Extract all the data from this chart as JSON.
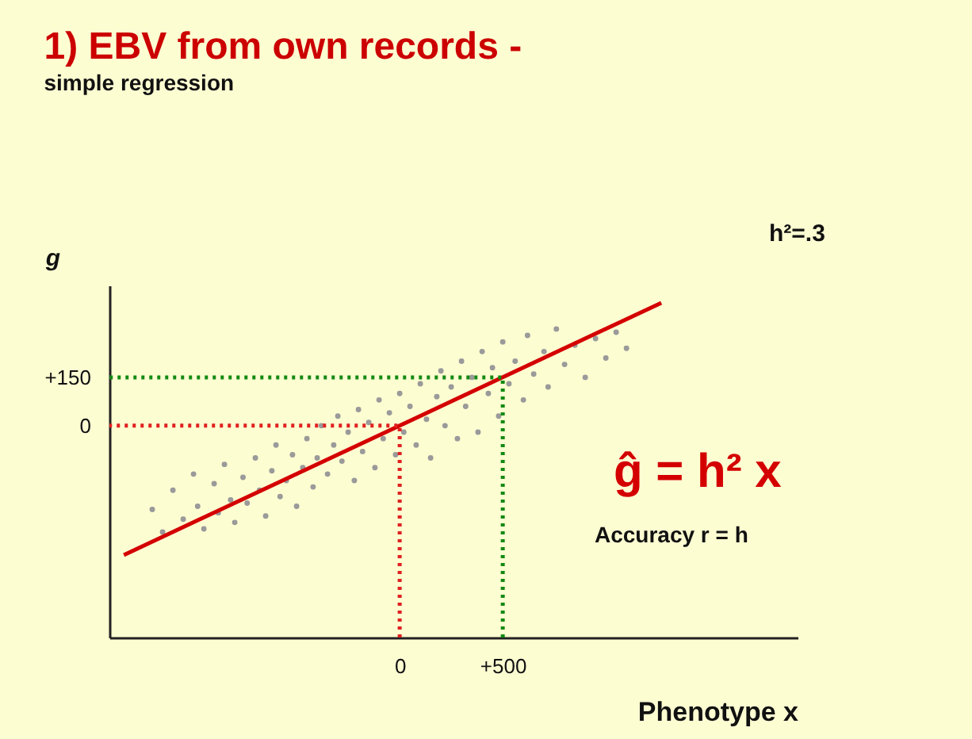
{
  "chart_data": {
    "type": "scatter",
    "title": "1) EBV from own records -",
    "subtitle": "simple regression",
    "xlabel": "Phenotype x",
    "ylabel": "g",
    "annotations": [
      "h²=.3",
      "ĝ = h² x",
      "Accuracy    r = h"
    ],
    "xlim": [
      -1408,
      1930
    ],
    "ylim": [
      -657,
      435
    ],
    "xticks": [
      0,
      {
        "value": 500,
        "label": "+500"
      }
    ],
    "yticks": [
      0,
      {
        "value": 150,
        "label": "+150"
      }
    ],
    "grid": false,
    "series": [
      {
        "marker": "circle",
        "color": "#9a9a9a",
        "x": [
          -1200,
          -1150,
          -1100,
          -1050,
          -1000,
          -980,
          -950,
          -900,
          -880,
          -850,
          -820,
          -800,
          -760,
          -740,
          -700,
          -680,
          -650,
          -620,
          -600,
          -580,
          -550,
          -520,
          -500,
          -470,
          -450,
          -420,
          -400,
          -380,
          -350,
          -320,
          -300,
          -280,
          -250,
          -220,
          -200,
          -180,
          -150,
          -120,
          -100,
          -80,
          -50,
          -20,
          0,
          20,
          50,
          80,
          100,
          130,
          150,
          180,
          200,
          220,
          250,
          280,
          300,
          320,
          350,
          380,
          400,
          430,
          450,
          480,
          500,
          530,
          560,
          600,
          620,
          650,
          700,
          720,
          760,
          800,
          850,
          900,
          950,
          1000,
          1050,
          1100
        ],
        "values": [
          -260,
          -330,
          -200,
          -290,
          -150,
          -250,
          -320,
          -180,
          -270,
          -120,
          -230,
          -300,
          -160,
          -240,
          -100,
          -200,
          -280,
          -140,
          -60,
          -220,
          -170,
          -90,
          -250,
          -130,
          -40,
          -190,
          -100,
          0,
          -150,
          -60,
          30,
          -110,
          -20,
          -170,
          50,
          -80,
          10,
          -130,
          80,
          -40,
          40,
          -90,
          100,
          -20,
          60,
          -60,
          130,
          20,
          -100,
          90,
          170,
          0,
          120,
          -40,
          200,
          60,
          150,
          -20,
          230,
          100,
          180,
          30,
          260,
          130,
          200,
          80,
          280,
          160,
          230,
          120,
          300,
          190,
          250,
          150,
          270,
          210,
          290,
          240
        ]
      },
      {
        "type": "line",
        "marker": "none",
        "line_style": "solid",
        "color": "#d40000",
        "x": [
          -1338,
          1269
        ],
        "values": [
          -401,
          381
        ]
      },
      {
        "type": "line",
        "marker": "none",
        "line_style": "dotted",
        "color": "#e02020",
        "x": [
          0,
          0,
          -1408
        ],
        "values": [
          -657,
          0,
          0
        ]
      },
      {
        "type": "line",
        "marker": "none",
        "line_style": "dotted",
        "color": "#138a13",
        "x": [
          500,
          500,
          -1408
        ],
        "values": [
          -657,
          150,
          150
        ]
      }
    ]
  }
}
